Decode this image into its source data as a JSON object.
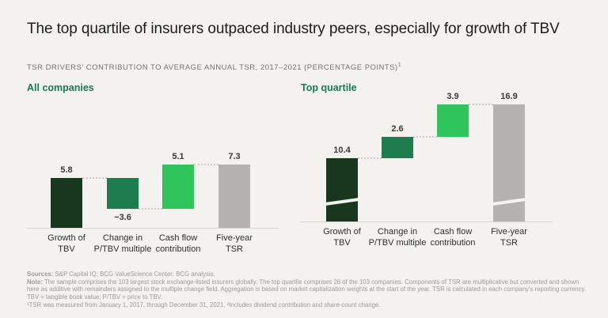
{
  "page": {
    "title": "The top quartile of insurers outpaced industry peers, especially for growth of TBV",
    "eyebrow": "TSR DRIVERS’ CONTRIBUTION TO AVERAGE ANNUAL TSR, 2017–2021 (PERCENTAGE POINTS)",
    "eyebrow_superscript": "1"
  },
  "colors": {
    "background": "#f3f2ef",
    "dark_green": "#17381e",
    "mid_green": "#1e7d4f",
    "bright_green": "#2fc55c",
    "gray_bar": "#b4b2af",
    "chart_title_green": "#177a52",
    "axis_line": "#d8d6d2",
    "connector": "#cdcac5",
    "value_text": "#3a3a38",
    "footnote_text": "#9d9b97"
  },
  "chart_data": [
    {
      "type": "bar",
      "subtype": "waterfall",
      "title": "All companies",
      "categories": [
        [
          "Growth of",
          "TBV"
        ],
        [
          "Change in",
          "P/TBV multiple"
        ],
        [
          "Cash flow",
          "contribution"
        ],
        [
          "Five-year",
          "TSR"
        ]
      ],
      "values": [
        5.8,
        -3.6,
        5.1,
        7.3
      ],
      "labels": [
        "5.8",
        "−3.6",
        "5.1",
        "7.3"
      ],
      "roles": [
        "delta",
        "delta",
        "delta",
        "total"
      ],
      "color_keys": [
        "dark_green",
        "mid_green",
        "bright_green",
        "gray_bar"
      ],
      "axis_break": false,
      "grid": false,
      "legend": "none",
      "ylim": [
        0,
        8
      ]
    },
    {
      "type": "bar",
      "subtype": "waterfall",
      "title": "Top quartile",
      "categories": [
        [
          "Growth of",
          "TBV"
        ],
        [
          "Change in",
          "P/TBV multiple"
        ],
        [
          "Cash flow",
          "contribution"
        ],
        [
          "Five-year",
          "TSR"
        ]
      ],
      "values": [
        10.4,
        2.6,
        3.9,
        16.9
      ],
      "labels": [
        "10.4",
        "2.6",
        "3.9",
        "16.9"
      ],
      "roles": [
        "delta",
        "delta",
        "delta",
        "total"
      ],
      "color_keys": [
        "dark_green",
        "mid_green",
        "bright_green",
        "gray_bar"
      ],
      "axis_break": true,
      "grid": false,
      "legend": "none",
      "ylim": [
        0,
        17
      ]
    }
  ],
  "footnotes": {
    "sources_label": "Sources:",
    "sources_text": " S&P Capital IQ; BCG ValueScience Center; BCG analysis.",
    "note_label": "Note:",
    "note_text": " The sample comprises the 103 largest stock exchange-listed insurers globally. The top quartile comprises 26 of the 103 companies. Components of TSR are multiplicative but converted and shown here as additive with remainders assigned to the multiple change field. Aggregation is based on market capitalization weights at the start of the year. TSR is calculated in each company’s reporting currency. TBV = tangible book value; P/TBV = price to TBV.",
    "fn": "¹TSR was measured from January 1, 2017, through December 31, 2021. ²Includes dividend contribution and share-count change."
  }
}
